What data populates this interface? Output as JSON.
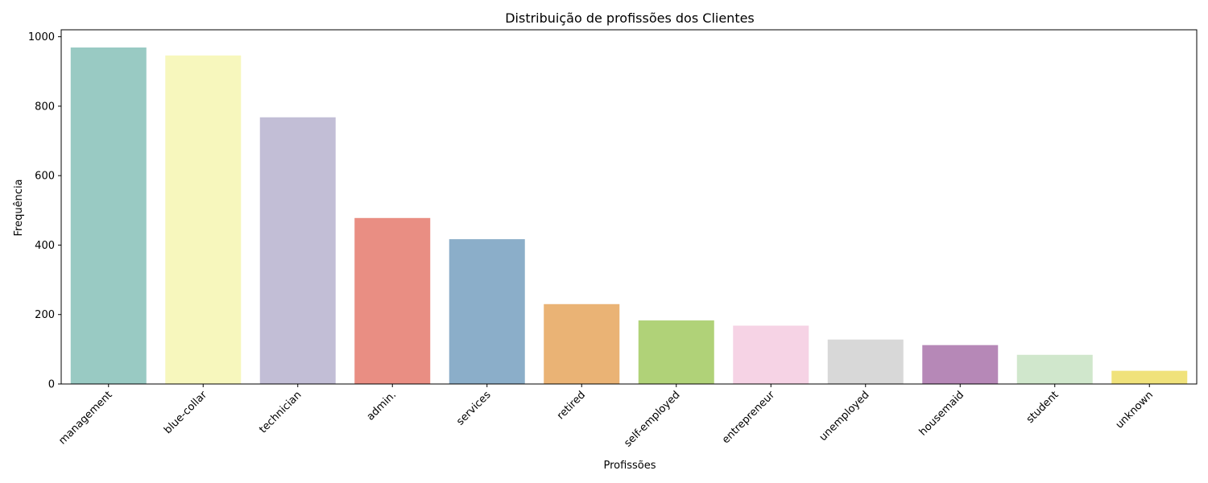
{
  "chart_data": {
    "type": "bar",
    "title": "Distribuição de profissões dos Clientes",
    "xlabel": "Profissões",
    "ylabel": "Frequência",
    "ylim": [
      0,
      1020
    ],
    "yticks": [
      0,
      200,
      400,
      600,
      800,
      1000
    ],
    "grid": false,
    "legend": "none",
    "categories": [
      "management",
      "blue-collar",
      "technician",
      "admin.",
      "services",
      "retired",
      "self-employed",
      "entrepreneur",
      "unemployed",
      "housemaid",
      "student",
      "unknown"
    ],
    "values": [
      969,
      946,
      768,
      478,
      417,
      230,
      183,
      168,
      128,
      112,
      84,
      38
    ],
    "colors": [
      "#99cac3",
      "#f7f7bd",
      "#c2bed6",
      "#e98e83",
      "#8baec9",
      "#eab375",
      "#b0d278",
      "#f6d3e5",
      "#d8d8d8",
      "#b688b7",
      "#d0e7cc",
      "#f0e27b"
    ]
  }
}
